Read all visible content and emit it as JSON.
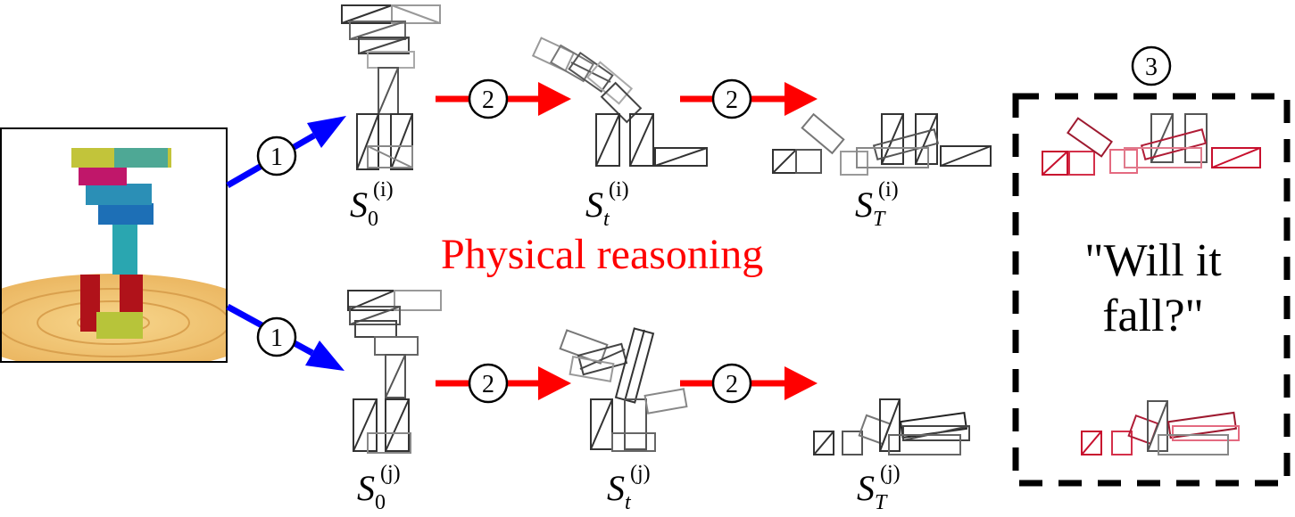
{
  "pipeline": {
    "step_perception": "1",
    "step_simulation": "2",
    "step_question": "3"
  },
  "states": {
    "top": [
      {
        "base": "S",
        "sub": "0",
        "sup": "(i)"
      },
      {
        "base": "S",
        "sub": "t",
        "sup": "(i)"
      },
      {
        "base": "S",
        "sub": "T",
        "sup": "(i)"
      }
    ],
    "bottom": [
      {
        "base": "S",
        "sub": "0",
        "sup": "(j)"
      },
      {
        "base": "S",
        "sub": "t",
        "sup": "(j)"
      },
      {
        "base": "S",
        "sub": "T",
        "sup": "(j)"
      }
    ]
  },
  "reasoning_label": "Physical reasoning",
  "question": {
    "line1": "\"Will it",
    "line2": "fall?\""
  },
  "colors": {
    "perception_arrow": "#0000ff",
    "simulation_arrow": "#ff0000",
    "reasoning_text": "#ff0000",
    "question_wire": "#d21e3c",
    "wireframe": "#555555"
  }
}
